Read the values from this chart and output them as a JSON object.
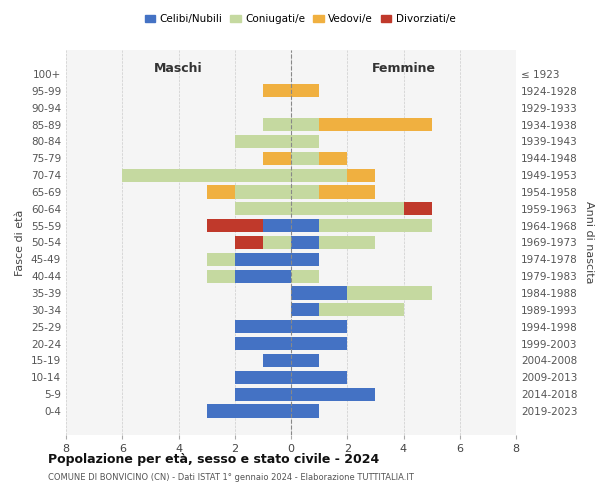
{
  "age_groups_bottom_to_top": [
    "0-4",
    "5-9",
    "10-14",
    "15-19",
    "20-24",
    "25-29",
    "30-34",
    "35-39",
    "40-44",
    "45-49",
    "50-54",
    "55-59",
    "60-64",
    "65-69",
    "70-74",
    "75-79",
    "80-84",
    "85-89",
    "90-94",
    "95-99",
    "100+"
  ],
  "birth_years_bottom_to_top": [
    "2019-2023",
    "2014-2018",
    "2009-2013",
    "2004-2008",
    "1999-2003",
    "1994-1998",
    "1989-1993",
    "1984-1988",
    "1979-1983",
    "1974-1978",
    "1969-1973",
    "1964-1968",
    "1959-1963",
    "1954-1958",
    "1949-1953",
    "1944-1948",
    "1939-1943",
    "1934-1938",
    "1929-1933",
    "1924-1928",
    "≤ 1923"
  ],
  "colors": {
    "celibe": "#4472c4",
    "coniugato": "#c5d9a0",
    "vedovo": "#f0b040",
    "divorziato": "#c0392b"
  },
  "males_bottom_to_top": {
    "celibe": [
      3,
      2,
      2,
      1,
      2,
      2,
      0,
      0,
      2,
      2,
      0,
      1,
      0,
      0,
      0,
      0,
      0,
      0,
      0,
      0,
      0
    ],
    "coniugato": [
      0,
      0,
      0,
      0,
      0,
      0,
      0,
      0,
      1,
      1,
      1,
      0,
      2,
      2,
      6,
      0,
      2,
      1,
      0,
      0,
      0
    ],
    "vedovo": [
      0,
      0,
      0,
      0,
      0,
      0,
      0,
      0,
      0,
      0,
      0,
      0,
      0,
      1,
      0,
      1,
      0,
      0,
      0,
      1,
      0
    ],
    "divorziato": [
      0,
      0,
      0,
      0,
      0,
      0,
      0,
      0,
      0,
      0,
      1,
      2,
      0,
      0,
      0,
      0,
      0,
      0,
      0,
      0,
      0
    ]
  },
  "females_bottom_to_top": {
    "celibe": [
      1,
      3,
      2,
      1,
      2,
      2,
      1,
      2,
      0,
      1,
      1,
      1,
      0,
      0,
      0,
      0,
      0,
      0,
      0,
      0,
      0
    ],
    "coniugato": [
      0,
      0,
      0,
      0,
      0,
      0,
      3,
      3,
      1,
      0,
      2,
      4,
      4,
      1,
      2,
      1,
      1,
      1,
      0,
      0,
      0
    ],
    "vedovo": [
      0,
      0,
      0,
      0,
      0,
      0,
      0,
      0,
      0,
      0,
      0,
      0,
      0,
      2,
      1,
      1,
      0,
      4,
      0,
      1,
      0
    ],
    "divorziato": [
      0,
      0,
      0,
      0,
      0,
      0,
      0,
      0,
      0,
      0,
      0,
      0,
      1,
      0,
      0,
      0,
      0,
      0,
      0,
      0,
      0
    ]
  },
  "xlim": [
    -8,
    8
  ],
  "xticks": [
    -8,
    -6,
    -4,
    -2,
    0,
    2,
    4,
    6,
    8
  ],
  "xticklabels": [
    "8",
    "6",
    "4",
    "2",
    "0",
    "2",
    "4",
    "6",
    "8"
  ],
  "title": "Popolazione per età, sesso e stato civile - 2024",
  "subtitle": "COMUNE DI BONVICINO (CN) - Dati ISTAT 1° gennaio 2024 - Elaborazione TUTTITALIA.IT",
  "ylabel_left": "Fasce di età",
  "ylabel_right": "Anni di nascita",
  "col_maschi": "Maschi",
  "col_femmine": "Femmine",
  "legend_labels": [
    "Celibi/Nubili",
    "Coniugati/e",
    "Vedovi/e",
    "Divorziati/e"
  ]
}
